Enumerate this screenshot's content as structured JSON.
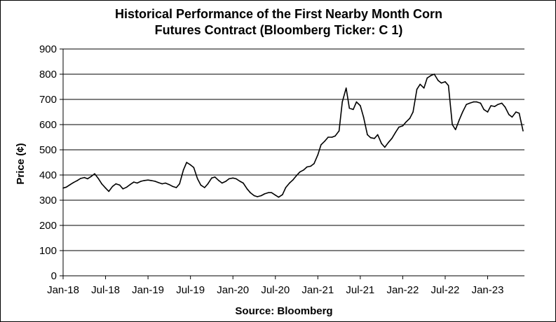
{
  "chart_data": {
    "type": "line",
    "title_line1": "Historical  Performance of the First Nearby Month Corn",
    "title_line2": "Futures Contract (Bloomberg Ticker: C 1)",
    "xlabel": "Source: Bloomberg",
    "ylabel": "Price (¢)",
    "ylim": [
      0,
      900
    ],
    "yticks": [
      0,
      100,
      200,
      300,
      400,
      500,
      600,
      700,
      800,
      900
    ],
    "xticks": [
      "Jan-18",
      "Jul-18",
      "Jan-19",
      "Jul-19",
      "Jan-20",
      "Jul-20",
      "Jan-21",
      "Jul-21",
      "Jan-22",
      "Jul-22",
      "Jan-23"
    ],
    "xrange": [
      "2018-01",
      "2023-06"
    ],
    "grid": "horizontal",
    "line_color": "#000000",
    "series": [
      {
        "x": [
          "2018-01-01",
          "2018-01-15",
          "2018-02-01",
          "2018-02-15",
          "2018-03-01",
          "2018-03-15",
          "2018-04-01",
          "2018-04-15",
          "2018-05-01",
          "2018-05-15",
          "2018-06-01",
          "2018-06-15",
          "2018-07-01",
          "2018-07-15",
          "2018-08-01",
          "2018-08-15",
          "2018-09-01",
          "2018-09-15",
          "2018-10-01",
          "2018-10-15",
          "2018-11-01",
          "2018-11-15",
          "2018-12-01",
          "2018-12-15",
          "2019-01-01",
          "2019-01-15",
          "2019-02-01",
          "2019-02-15",
          "2019-03-01",
          "2019-03-15",
          "2019-04-01",
          "2019-04-15",
          "2019-05-01",
          "2019-05-15",
          "2019-06-01",
          "2019-06-15",
          "2019-07-01",
          "2019-07-15",
          "2019-08-01",
          "2019-08-15",
          "2019-09-01",
          "2019-09-15",
          "2019-10-01",
          "2019-10-15",
          "2019-11-01",
          "2019-11-15",
          "2019-12-01",
          "2019-12-15",
          "2020-01-01",
          "2020-01-15",
          "2020-02-01",
          "2020-02-15",
          "2020-03-01",
          "2020-03-15",
          "2020-04-01",
          "2020-04-15",
          "2020-05-01",
          "2020-05-15",
          "2020-06-01",
          "2020-06-15",
          "2020-07-01",
          "2020-07-15",
          "2020-08-01",
          "2020-08-15",
          "2020-09-01",
          "2020-09-15",
          "2020-10-01",
          "2020-10-15",
          "2020-11-01",
          "2020-11-15",
          "2020-12-01",
          "2020-12-15",
          "2021-01-01",
          "2021-01-15",
          "2021-02-01",
          "2021-02-15",
          "2021-03-01",
          "2021-03-15",
          "2021-04-01",
          "2021-04-15",
          "2021-05-01",
          "2021-05-15",
          "2021-06-01",
          "2021-06-15",
          "2021-07-01",
          "2021-07-15",
          "2021-08-01",
          "2021-08-15",
          "2021-09-01",
          "2021-09-15",
          "2021-10-01",
          "2021-10-15",
          "2021-11-01",
          "2021-11-15",
          "2021-12-01",
          "2021-12-15",
          "2022-01-01",
          "2022-01-15",
          "2022-02-01",
          "2022-02-15",
          "2022-03-01",
          "2022-03-15",
          "2022-04-01",
          "2022-04-15",
          "2022-05-01",
          "2022-05-15",
          "2022-06-01",
          "2022-06-15",
          "2022-07-01",
          "2022-07-15",
          "2022-08-01",
          "2022-08-15",
          "2022-09-01",
          "2022-09-15",
          "2022-10-01",
          "2022-10-15",
          "2022-11-01",
          "2022-11-15",
          "2022-12-01",
          "2022-12-15",
          "2023-01-01",
          "2023-01-15",
          "2023-02-01",
          "2023-02-15",
          "2023-03-01",
          "2023-03-15",
          "2023-04-01",
          "2023-04-15",
          "2023-05-01",
          "2023-05-15",
          "2023-06-01"
        ],
        "values": [
          348,
          352,
          362,
          370,
          378,
          386,
          390,
          385,
          395,
          405,
          385,
          365,
          348,
          335,
          355,
          365,
          360,
          345,
          352,
          362,
          372,
          368,
          375,
          378,
          380,
          378,
          375,
          370,
          365,
          368,
          362,
          355,
          350,
          365,
          420,
          450,
          440,
          430,
          385,
          360,
          350,
          365,
          388,
          392,
          378,
          368,
          375,
          385,
          388,
          385,
          375,
          368,
          345,
          330,
          318,
          314,
          318,
          325,
          330,
          330,
          320,
          312,
          322,
          350,
          368,
          380,
          398,
          412,
          420,
          432,
          435,
          445,
          480,
          520,
          535,
          550,
          550,
          555,
          575,
          690,
          745,
          665,
          660,
          690,
          675,
          630,
          560,
          548,
          545,
          560,
          525,
          510,
          530,
          545,
          570,
          590,
          595,
          610,
          625,
          650,
          740,
          760,
          745,
          785,
          795,
          800,
          775,
          765,
          770,
          755,
          600,
          580,
          620,
          650,
          680,
          685,
          690,
          690,
          685,
          660,
          650,
          675,
          672,
          680,
          685,
          670,
          640,
          630,
          650,
          645,
          575
        ]
      }
    ]
  }
}
